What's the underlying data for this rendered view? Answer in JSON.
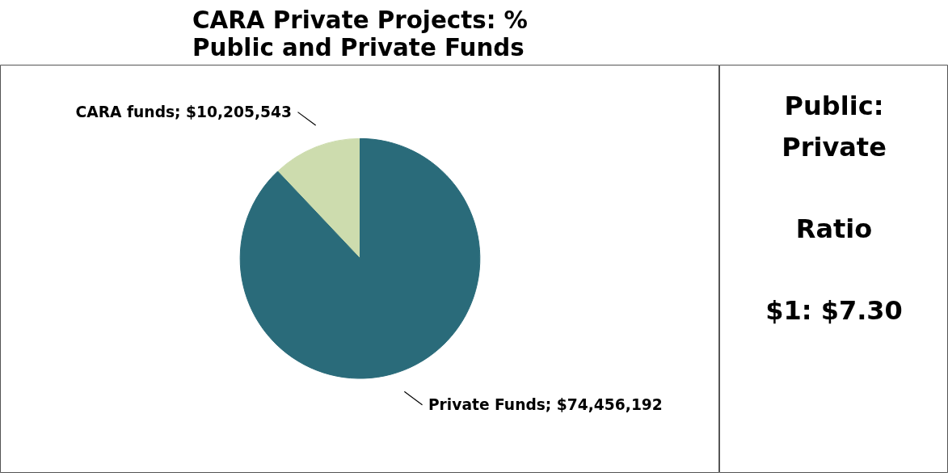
{
  "chart_data": [
    {
      "type": "pie",
      "title": "CARA Private Projects: % Public and Private Funds",
      "categories": [
        "CARA funds",
        "Private Funds"
      ],
      "values": [
        10205543,
        74456192
      ],
      "colors": [
        "#cddcae",
        "#2a6b7a"
      ],
      "value_labels": [
        "$10,205,543",
        "$74,456,192"
      ]
    },
    {
      "type": "other",
      "title": "Public: Private",
      "annotations": [
        "Ratio",
        "$1: $7.30"
      ]
    }
  ]
}
